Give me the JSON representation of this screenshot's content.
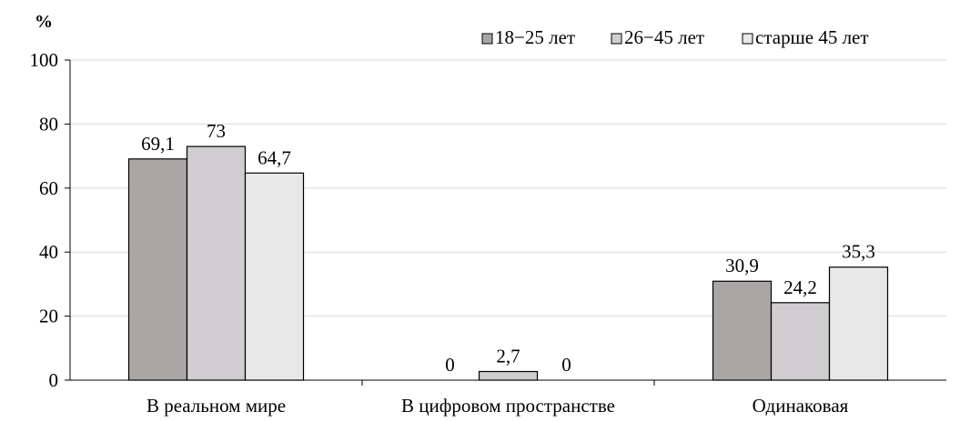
{
  "chart_data": {
    "type": "bar",
    "ylabel": "%",
    "ylim": [
      0,
      100
    ],
    "yticks": [
      "0",
      "20",
      "40",
      "60",
      "80",
      "100"
    ],
    "grid": true,
    "legend_position": "top-right",
    "categories": [
      "В реальном мире",
      "В цифровом пространстве",
      "Одинаковая"
    ],
    "series": [
      {
        "name": "18−25 лет",
        "color": "#aba6a6",
        "values": [
          69.1,
          0,
          30.9
        ],
        "labels": [
          "69,1",
          "0",
          "30,9"
        ]
      },
      {
        "name": "26−45 лет",
        "color": "#cfcdcf",
        "values": [
          73,
          2.7,
          24.2
        ],
        "labels": [
          "73",
          "2,7",
          "24,2"
        ]
      },
      {
        "name": "старше 45 лет",
        "color": "#e8e8e8",
        "values": [
          64.7,
          0,
          35.3
        ],
        "labels": [
          "64,7",
          "0",
          "35,3"
        ]
      }
    ]
  }
}
